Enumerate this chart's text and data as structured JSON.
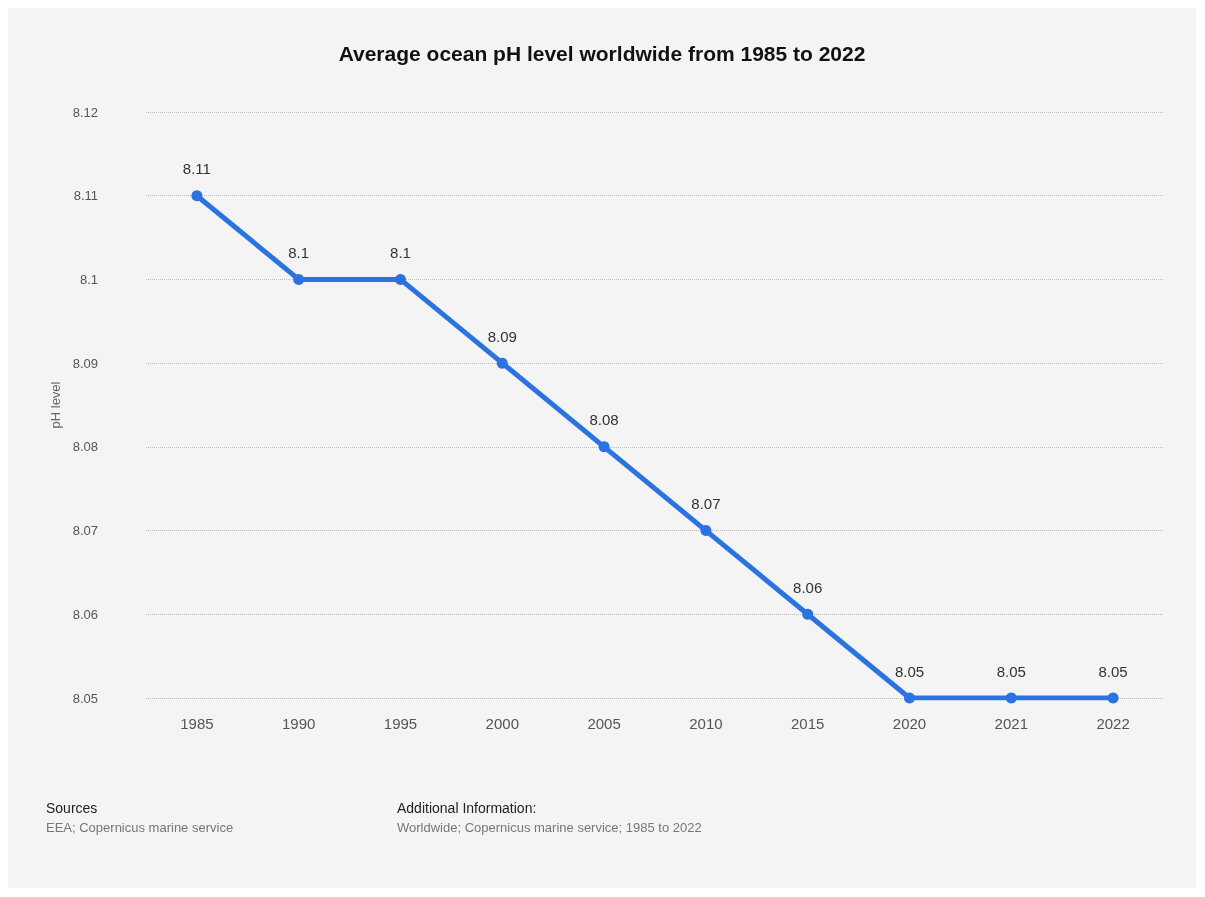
{
  "chart_data": {
    "type": "line",
    "title": "Average ocean pH level worldwide from 1985 to 2022",
    "ylabel": "pH level",
    "categories": [
      "1985",
      "1990",
      "1995",
      "2000",
      "2005",
      "2010",
      "2015",
      "2020",
      "2021",
      "2022"
    ],
    "series": [
      {
        "color": "#2a73e0",
        "values": [
          8.11,
          8.1,
          8.1,
          8.09,
          8.08,
          8.07,
          8.06,
          8.05,
          8.05,
          8.05
        ]
      }
    ],
    "ylim": [
      8.05,
      8.12
    ],
    "yticks": [
      8.05,
      8.06,
      8.07,
      8.08,
      8.09,
      8.1,
      8.11,
      8.12
    ],
    "grid": "y",
    "marker": "circle",
    "line_style": "solid",
    "data_labels": true,
    "annotations": [
      "Sources",
      "EEA; Copernicus marine service",
      "Additional Information:",
      "Worldwide; Copernicus marine service; 1985 to 2022"
    ]
  }
}
